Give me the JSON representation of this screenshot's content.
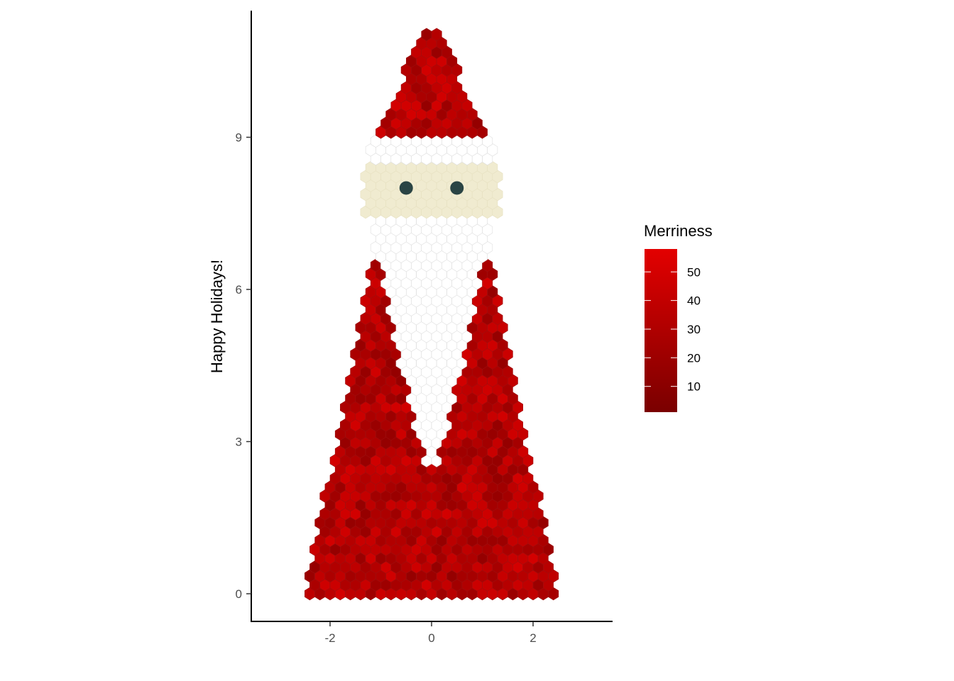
{
  "chart_data": {
    "type": "heatmap",
    "ylabel": "Happy Holidays!",
    "xlabel": "",
    "xlim": [
      -3.55,
      3.55
    ],
    "ylim": [
      -0.55,
      11.45
    ],
    "x_ticks": [
      -2,
      0,
      2
    ],
    "x_tick_labels": [
      "-2",
      "0",
      "2"
    ],
    "y_ticks": [
      0,
      3,
      6,
      9
    ],
    "y_tick_labels": [
      "0",
      "3",
      "6",
      "9"
    ],
    "grid": false,
    "legend": {
      "title": "Merriness",
      "placement": "right",
      "range": [
        1,
        58
      ],
      "breaks": [
        10,
        20,
        30,
        40,
        50
      ],
      "break_labels": [
        "10",
        "20",
        "30",
        "40",
        "50"
      ],
      "low_color": "#7a0000",
      "high_color": "#e30000"
    },
    "regions": [
      {
        "name": "body",
        "fill": "gradient",
        "shape": "trapezoid",
        "y_range": [
          0,
          6.8
        ],
        "half_width_bottom": 2.5,
        "half_width_top": 1.1
      },
      {
        "name": "beard",
        "fill": "#ffffff",
        "shape": "v",
        "y_range": [
          2.6,
          7.6
        ],
        "half_width_top": 1.1
      },
      {
        "name": "face",
        "fill": "#f0ebd0",
        "y_range": [
          7.4,
          8.5
        ],
        "half_width": 1.35
      },
      {
        "name": "hat-brim",
        "fill": "#ffffff",
        "y_range": [
          8.5,
          9.0
        ],
        "half_width": 1.25
      },
      {
        "name": "hat",
        "fill": "gradient",
        "shape": "triangle",
        "y_range": [
          9.0,
          11.1
        ],
        "half_width_bottom": 1.05,
        "half_width_top": 0.2
      }
    ],
    "eyes": {
      "color": "#2a4444",
      "points": [
        {
          "x": -0.5,
          "y": 8.0
        },
        {
          "x": 0.5,
          "y": 8.0
        }
      ]
    }
  }
}
